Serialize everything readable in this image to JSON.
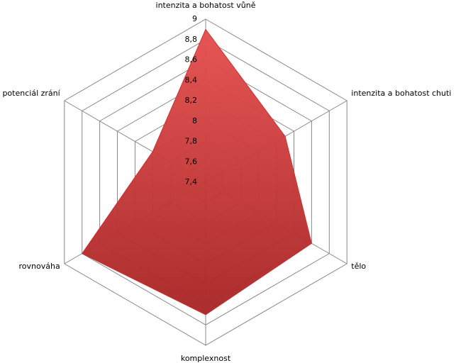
{
  "chart_data": {
    "type": "radar",
    "categories": [
      "intenzita a bohatost vůně",
      "intenzita a bohatost chuti",
      "tělo",
      "komplexnost",
      "rovnováha",
      "potenciál zrání"
    ],
    "values": [
      8.9,
      8.3,
      8.6,
      8.7,
      8.8,
      8.0
    ],
    "color": "#c83232",
    "ylim": [
      7.4,
      9
    ],
    "yticks": [
      {
        "value": 7.4,
        "label": "7,4"
      },
      {
        "value": 7.6,
        "label": "7,6"
      },
      {
        "value": 7.8,
        "label": "7,8"
      },
      8,
      {
        "value": 8.2,
        "label": "8,2"
      },
      {
        "value": 8.4,
        "label": "8,4"
      },
      {
        "value": 8.6,
        "label": "8,6"
      },
      {
        "value": 8.8,
        "label": "8,8"
      },
      9
    ],
    "grid": true
  }
}
